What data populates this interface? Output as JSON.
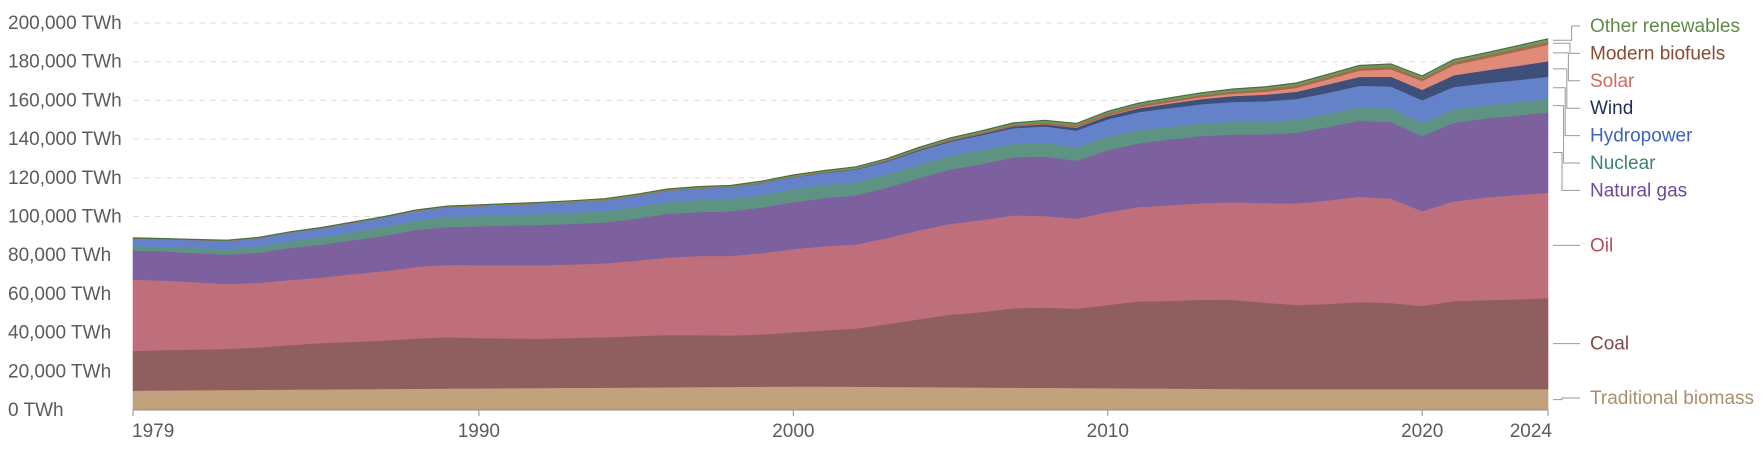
{
  "chart_data": {
    "type": "area",
    "stacked": true,
    "title": "",
    "xlabel": "",
    "ylabel": "",
    "x": [
      1979,
      1980,
      1981,
      1982,
      1983,
      1984,
      1985,
      1986,
      1987,
      1988,
      1989,
      1990,
      1991,
      1992,
      1993,
      1994,
      1995,
      1996,
      1997,
      1998,
      1999,
      2000,
      2001,
      2002,
      2003,
      2004,
      2005,
      2006,
      2007,
      2008,
      2009,
      2010,
      2011,
      2012,
      2013,
      2014,
      2015,
      2016,
      2017,
      2018,
      2019,
      2020,
      2021,
      2022,
      2023,
      2024
    ],
    "xlim": [
      1979,
      2024
    ],
    "ylim": [
      0,
      200000
    ],
    "x_ticks": [
      1979,
      1990,
      2000,
      2010,
      2020,
      2024
    ],
    "y_ticks": [
      {
        "value": 0,
        "label": "0 TWh"
      },
      {
        "value": 20000,
        "label": "20,000 TWh"
      },
      {
        "value": 40000,
        "label": "40,000 TWh"
      },
      {
        "value": 60000,
        "label": "60,000 TWh"
      },
      {
        "value": 80000,
        "label": "80,000 TWh"
      },
      {
        "value": 100000,
        "label": "100,000 TWh"
      },
      {
        "value": 120000,
        "label": "120,000 TWh"
      },
      {
        "value": 140000,
        "label": "140,000 TWh"
      },
      {
        "value": 160000,
        "label": "160,000 TWh"
      },
      {
        "value": 180000,
        "label": "180,000 TWh"
      },
      {
        "value": 200000,
        "label": "200,000 TWh"
      }
    ],
    "grid": true,
    "legend_placement": "right, labels at series ends",
    "series": [
      {
        "name": "Traditional biomass",
        "color": "#c2a27c",
        "label_color": "#a88f6e",
        "values": [
          10000,
          10200,
          10300,
          10400,
          10500,
          10600,
          10700,
          10800,
          10900,
          11000,
          11100,
          11200,
          11300,
          11400,
          11500,
          11600,
          11700,
          11800,
          11900,
          12000,
          12100,
          12200,
          12200,
          12100,
          12000,
          11900,
          11800,
          11700,
          11600,
          11500,
          11400,
          11300,
          11200,
          11100,
          11000,
          10900,
          10800,
          10800,
          10800,
          10800,
          10800,
          10800,
          10800,
          10800,
          10800,
          10800
        ]
      },
      {
        "name": "Coal",
        "color": "#8f5e5e",
        "label_color": "#7f4b4b",
        "values": [
          20500,
          20800,
          21000,
          21200,
          21900,
          23000,
          24000,
          24500,
          25000,
          26000,
          26500,
          26000,
          25700,
          25500,
          25800,
          26000,
          26500,
          27000,
          26800,
          26500,
          27000,
          28000,
          29000,
          30000,
          32500,
          35000,
          37500,
          39000,
          41000,
          41500,
          41000,
          43000,
          45000,
          45300,
          46000,
          46000,
          44700,
          43500,
          44000,
          45000,
          44500,
          43000,
          45500,
          46000,
          46400,
          47000
        ]
      },
      {
        "name": "Oil",
        "color": "#bf6e7c",
        "label_color": "#b04e5e",
        "values": [
          37000,
          36000,
          34800,
          33500,
          33400,
          33700,
          33800,
          35000,
          36000,
          37000,
          37500,
          37800,
          37900,
          38000,
          38000,
          38200,
          39000,
          40000,
          41000,
          41200,
          42000,
          43000,
          43500,
          43500,
          44500,
          46000,
          47000,
          47500,
          48000,
          47300,
          46500,
          48000,
          48700,
          49500,
          50000,
          50500,
          51500,
          52500,
          53500,
          54500,
          54000,
          49000,
          51500,
          53000,
          54000,
          54500
        ]
      },
      {
        "name": "Natural gas",
        "color": "#7d609e",
        "label_color": "#6b4a98",
        "values": [
          15000,
          15000,
          15000,
          15200,
          15500,
          16500,
          17000,
          17500,
          18200,
          19000,
          19500,
          20000,
          20500,
          20800,
          21000,
          21200,
          21800,
          22600,
          22700,
          23000,
          23600,
          24300,
          24800,
          25400,
          26000,
          27000,
          28000,
          29000,
          30000,
          30700,
          30000,
          32000,
          33000,
          34000,
          34600,
          35000,
          35500,
          36500,
          38000,
          39200,
          39600,
          38800,
          40700,
          40800,
          41000,
          41500
        ]
      },
      {
        "name": "Nuclear",
        "color": "#5e9384",
        "label_color": "#3e8372",
        "values": [
          2300,
          2300,
          2600,
          2900,
          3200,
          3500,
          3900,
          4300,
          4700,
          5000,
          5200,
          5300,
          5400,
          5600,
          5700,
          5900,
          6000,
          6200,
          6300,
          6400,
          6500,
          6700,
          6800,
          6900,
          6900,
          7100,
          7100,
          7200,
          7100,
          7000,
          6900,
          7000,
          6800,
          6500,
          6500,
          6600,
          6700,
          6800,
          6900,
          7000,
          7100,
          6900,
          7000,
          6900,
          7000,
          7000
        ]
      },
      {
        "name": "Hydropower",
        "color": "#6482c9",
        "label_color": "#3d62bf",
        "values": [
          3900,
          4000,
          4100,
          4200,
          4300,
          4400,
          4500,
          4600,
          4700,
          4800,
          5000,
          5100,
          5200,
          5300,
          5400,
          5500,
          5600,
          5700,
          5800,
          5900,
          6000,
          6100,
          6200,
          6400,
          6600,
          7000,
          7300,
          7700,
          8000,
          8600,
          8700,
          9000,
          9300,
          9700,
          10000,
          10300,
          10400,
          10600,
          10800,
          11100,
          11300,
          11600,
          11500,
          11400,
          11300,
          11500
        ]
      },
      {
        "name": "Wind",
        "color": "#3e4f79",
        "label_color": "#1e2e5c",
        "values": [
          0,
          0,
          0,
          0,
          0,
          0,
          0,
          0,
          0,
          0,
          0,
          0,
          0,
          0,
          0,
          0,
          30,
          40,
          60,
          80,
          100,
          130,
          180,
          250,
          330,
          450,
          550,
          700,
          900,
          1100,
          1400,
          1700,
          2000,
          2400,
          2700,
          3000,
          3400,
          3800,
          4300,
          4600,
          5000,
          5400,
          6000,
          6600,
          7300,
          8000
        ]
      },
      {
        "name": "Solar",
        "color": "#e08a7a",
        "label_color": "#d46a5e",
        "values": [
          0,
          0,
          0,
          0,
          0,
          0,
          0,
          0,
          0,
          0,
          0,
          0,
          0,
          0,
          0,
          0,
          0,
          0,
          0,
          0,
          0,
          0,
          0,
          0,
          0,
          0,
          0,
          0,
          50,
          100,
          200,
          300,
          500,
          700,
          900,
          1200,
          1500,
          2000,
          2600,
          3200,
          3800,
          4500,
          5300,
          6200,
          7400,
          8500
        ]
      },
      {
        "name": "Modern biofuels",
        "color": "#a56a4a",
        "label_color": "#8a4a2e",
        "values": [
          50,
          60,
          70,
          80,
          100,
          110,
          120,
          130,
          140,
          150,
          160,
          170,
          180,
          190,
          200,
          210,
          220,
          230,
          240,
          250,
          260,
          280,
          300,
          330,
          370,
          420,
          500,
          600,
          750,
          900,
          950,
          1000,
          1050,
          1100,
          1150,
          1200,
          1250,
          1250,
          1300,
          1350,
          1400,
          1300,
          1400,
          1450,
          1500,
          1550
        ]
      },
      {
        "name": "Other renewables",
        "color": "#6f9760",
        "label_color": "#5f8a47",
        "values": [
          200,
          220,
          240,
          260,
          280,
          300,
          320,
          350,
          380,
          410,
          440,
          470,
          500,
          520,
          550,
          580,
          610,
          640,
          670,
          700,
          730,
          760,
          790,
          820,
          850,
          880,
          910,
          940,
          970,
          1000,
          1030,
          1060,
          1090,
          1120,
          1150,
          1180,
          1210,
          1240,
          1270,
          1300,
          1330,
          1360,
          1390,
          1420,
          1450,
          1480
        ]
      }
    ]
  }
}
